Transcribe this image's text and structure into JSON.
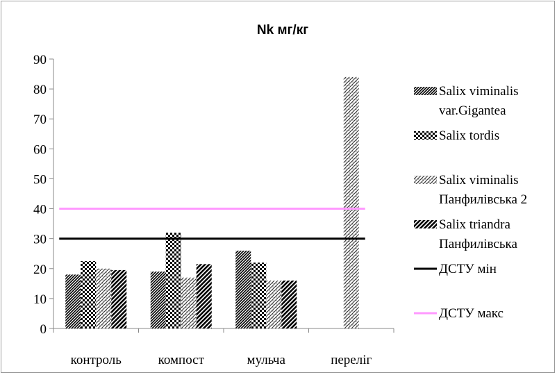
{
  "chart_data": {
    "type": "bar",
    "title": "Nk мг/кг",
    "xlabel": "",
    "ylabel": "",
    "ylim": [
      0,
      90
    ],
    "yticks": [
      0,
      10,
      20,
      30,
      40,
      50,
      60,
      70,
      80,
      90
    ],
    "grid": false,
    "legend_position": "right",
    "categories": [
      "контроль",
      "компост",
      "мульча",
      "переліг"
    ],
    "series": [
      {
        "name": "Salix viminalis var.Gigantea",
        "legend_lines": [
          "Salix viminalis",
          "var.Gigantea"
        ],
        "values": [
          18,
          19,
          26,
          null
        ],
        "pattern": "diag-dense",
        "color": "#000000"
      },
      {
        "name": "Salix tordis",
        "legend_lines": [
          "Salix tordis"
        ],
        "values": [
          22.5,
          32,
          22,
          null
        ],
        "pattern": "checker",
        "color": "#000000"
      },
      {
        "name": "Salix viminalis Панфилівська 2",
        "legend_lines": [
          "Salix viminalis",
          "Панфилівська 2"
        ],
        "values": [
          20,
          17,
          16,
          84
        ],
        "pattern": "diag-light",
        "color": "#000000"
      },
      {
        "name": "Salix triandra Панфилівська",
        "legend_lines": [
          "Salix triandra",
          "Панфилівська"
        ],
        "values": [
          19.5,
          21.5,
          16,
          null
        ],
        "pattern": "diag-wide",
        "color": "#000000"
      }
    ],
    "reference_lines": [
      {
        "name": "ДСТУ мін",
        "value": 30,
        "color": "#000000"
      },
      {
        "name": "ДСТУ макс",
        "value": 40,
        "color": "#ff99ff"
      }
    ]
  }
}
